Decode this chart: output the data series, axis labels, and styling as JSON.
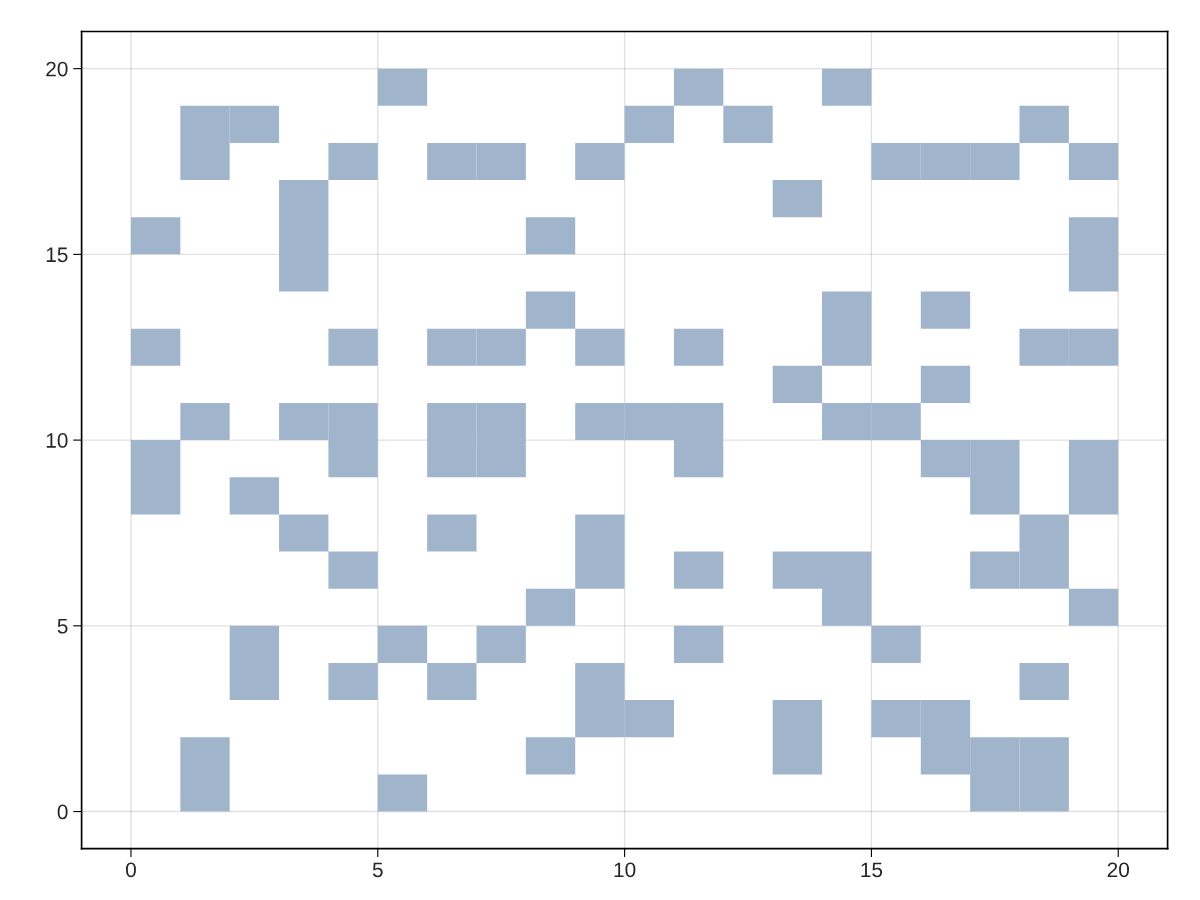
{
  "chart_data": {
    "type": "bar",
    "series": [
      {
        "color": "#a0b5cc",
        "x": [
          0.5,
          1.5,
          2.5,
          3.5,
          4.5,
          5.5,
          6.5,
          7.5,
          8.5,
          9.5,
          10.5,
          11.5,
          12.5,
          13.5,
          14.5,
          15.5,
          16.5,
          17.5,
          18.5,
          19.5
        ],
        "base": [
          8,
          0,
          3,
          7,
          3,
          0,
          3,
          4,
          1,
          2,
          2,
          4,
          18,
          1,
          5,
          2,
          1,
          0,
          0,
          5
        ],
        "values": [
          2,
          2,
          2,
          1,
          1,
          1,
          1,
          1,
          1,
          2,
          1,
          1,
          1,
          2,
          2,
          1,
          2,
          2,
          2,
          1
        ]
      },
      {
        "color": "#a0b5cc",
        "x": [
          0.5,
          1.5,
          2.5,
          3.5,
          4.5,
          5.5,
          6.5,
          7.5,
          8.5,
          9.5,
          10.5,
          11.5,
          13.5,
          14.5,
          15.5,
          16.5,
          17.5,
          18.5,
          19.5
        ],
        "base": [
          12,
          10,
          8,
          10,
          6,
          4,
          7,
          9,
          5,
          6,
          10,
          6,
          6,
          10,
          4,
          9,
          6,
          3,
          8
        ],
        "values": [
          1,
          1,
          1,
          1,
          1,
          1,
          1,
          2,
          1,
          2,
          1,
          1,
          1,
          1,
          1,
          1,
          1,
          1,
          2
        ]
      },
      {
        "color": "#a0b5cc",
        "x": [
          0.5,
          1.5,
          2.5,
          3.5,
          4.5,
          5.5,
          6.5,
          7.5,
          8.5,
          9.5,
          10.5,
          11.5,
          13.5,
          14.5,
          15.5,
          16.5,
          17.5,
          18.5,
          19.5
        ],
        "base": [
          15,
          17,
          18,
          14,
          9,
          19,
          9,
          12,
          13,
          10,
          18,
          9,
          11,
          12,
          10,
          11,
          8,
          6,
          12
        ],
        "values": [
          1,
          2,
          1,
          3,
          2,
          1,
          2,
          1,
          1,
          1,
          1,
          2,
          1,
          2,
          1,
          1,
          2,
          2,
          1
        ]
      },
      {
        "color": "#a0b5cc",
        "x": [
          4.5,
          6.5,
          7.5,
          8.5,
          9.5,
          11.5,
          13.5,
          14.5,
          15.5,
          16.5,
          17.5,
          18.5,
          19.5
        ],
        "base": [
          12,
          12,
          17,
          15,
          12,
          12,
          16,
          19,
          17,
          13,
          17,
          12,
          14
        ],
        "values": [
          1,
          1,
          1,
          1,
          1,
          1,
          1,
          1,
          1,
          1,
          1,
          1,
          2
        ]
      },
      {
        "color": "#a0b5cc",
        "x": [
          4.5,
          6.5,
          9.5,
          11.5,
          16.5,
          18.5,
          19.5
        ],
        "base": [
          17,
          17,
          17,
          19,
          17,
          18,
          17
        ],
        "values": [
          1,
          1,
          1,
          1,
          1,
          1,
          1
        ]
      }
    ],
    "xlim": [
      -1,
      21
    ],
    "ylim": [
      -1,
      21
    ],
    "xticks": [
      0,
      5,
      10,
      15,
      20
    ],
    "yticks": [
      0,
      5,
      10,
      15,
      20
    ],
    "grid": true
  }
}
